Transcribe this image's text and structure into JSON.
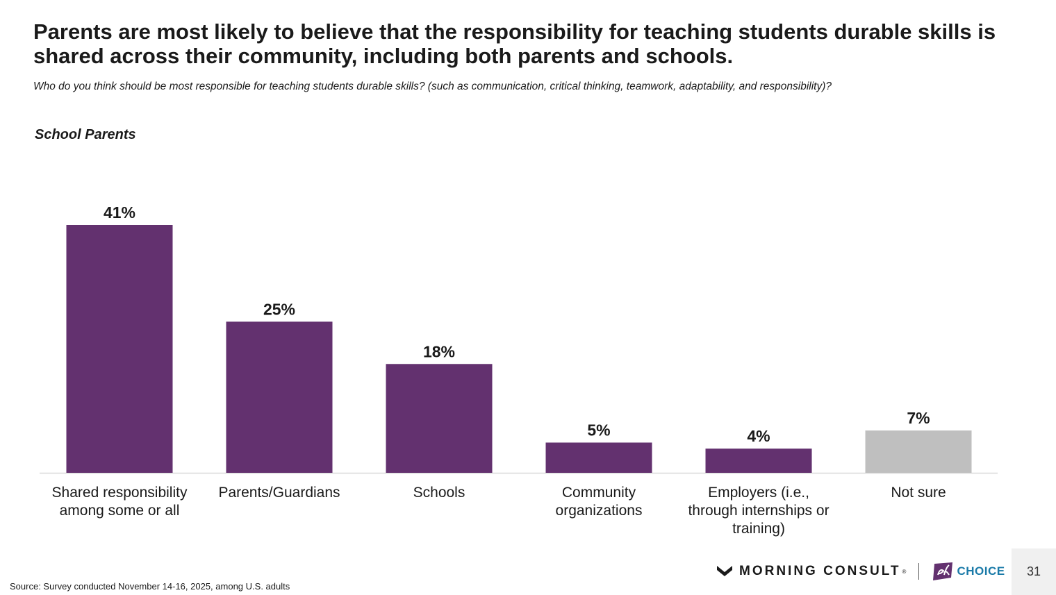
{
  "title": "Parents are most likely to believe that the responsibility for teaching students durable skills is shared across their community, including both parents and schools.",
  "subtitle": "Who do you think should be most responsible for teaching students durable skills? (such as communication, critical thinking, teamwork, adaptability, and responsibility)?",
  "segment_label": "School Parents",
  "footer": {
    "source": "Source: Survey conducted November 14-16, 2025, among U.S. adults",
    "logo_morning_consult": "MORNING CONSULT",
    "logo_edchoice": "edCHOICE",
    "page_number": "31"
  },
  "colors": {
    "primary_bar": "#63316f",
    "not_sure_bar": "#bfbfbf",
    "baseline": "#d9d9d9"
  },
  "chart_data": {
    "type": "bar",
    "categories": [
      "Shared responsibility among some or all",
      "Parents/Guardians",
      "Schools",
      "Community organizations",
      "Employers (i.e., through internships or training)",
      "Not sure"
    ],
    "category_lines": [
      [
        "Shared responsibility",
        "among some or all"
      ],
      [
        "Parents/Guardians"
      ],
      [
        "Schools"
      ],
      [
        "Community",
        "organizations"
      ],
      [
        "Employers (i.e.,",
        "through internships or",
        "training)"
      ],
      [
        "Not sure"
      ]
    ],
    "values": [
      41,
      25,
      18,
      5,
      4,
      7
    ],
    "data_labels": [
      "41%",
      "25%",
      "18%",
      "5%",
      "4%",
      "7%"
    ],
    "bar_colors": [
      "#63316f",
      "#63316f",
      "#63316f",
      "#63316f",
      "#63316f",
      "#bfbfbf"
    ],
    "ylim": [
      0,
      41
    ],
    "grid": false,
    "legend": "none"
  }
}
